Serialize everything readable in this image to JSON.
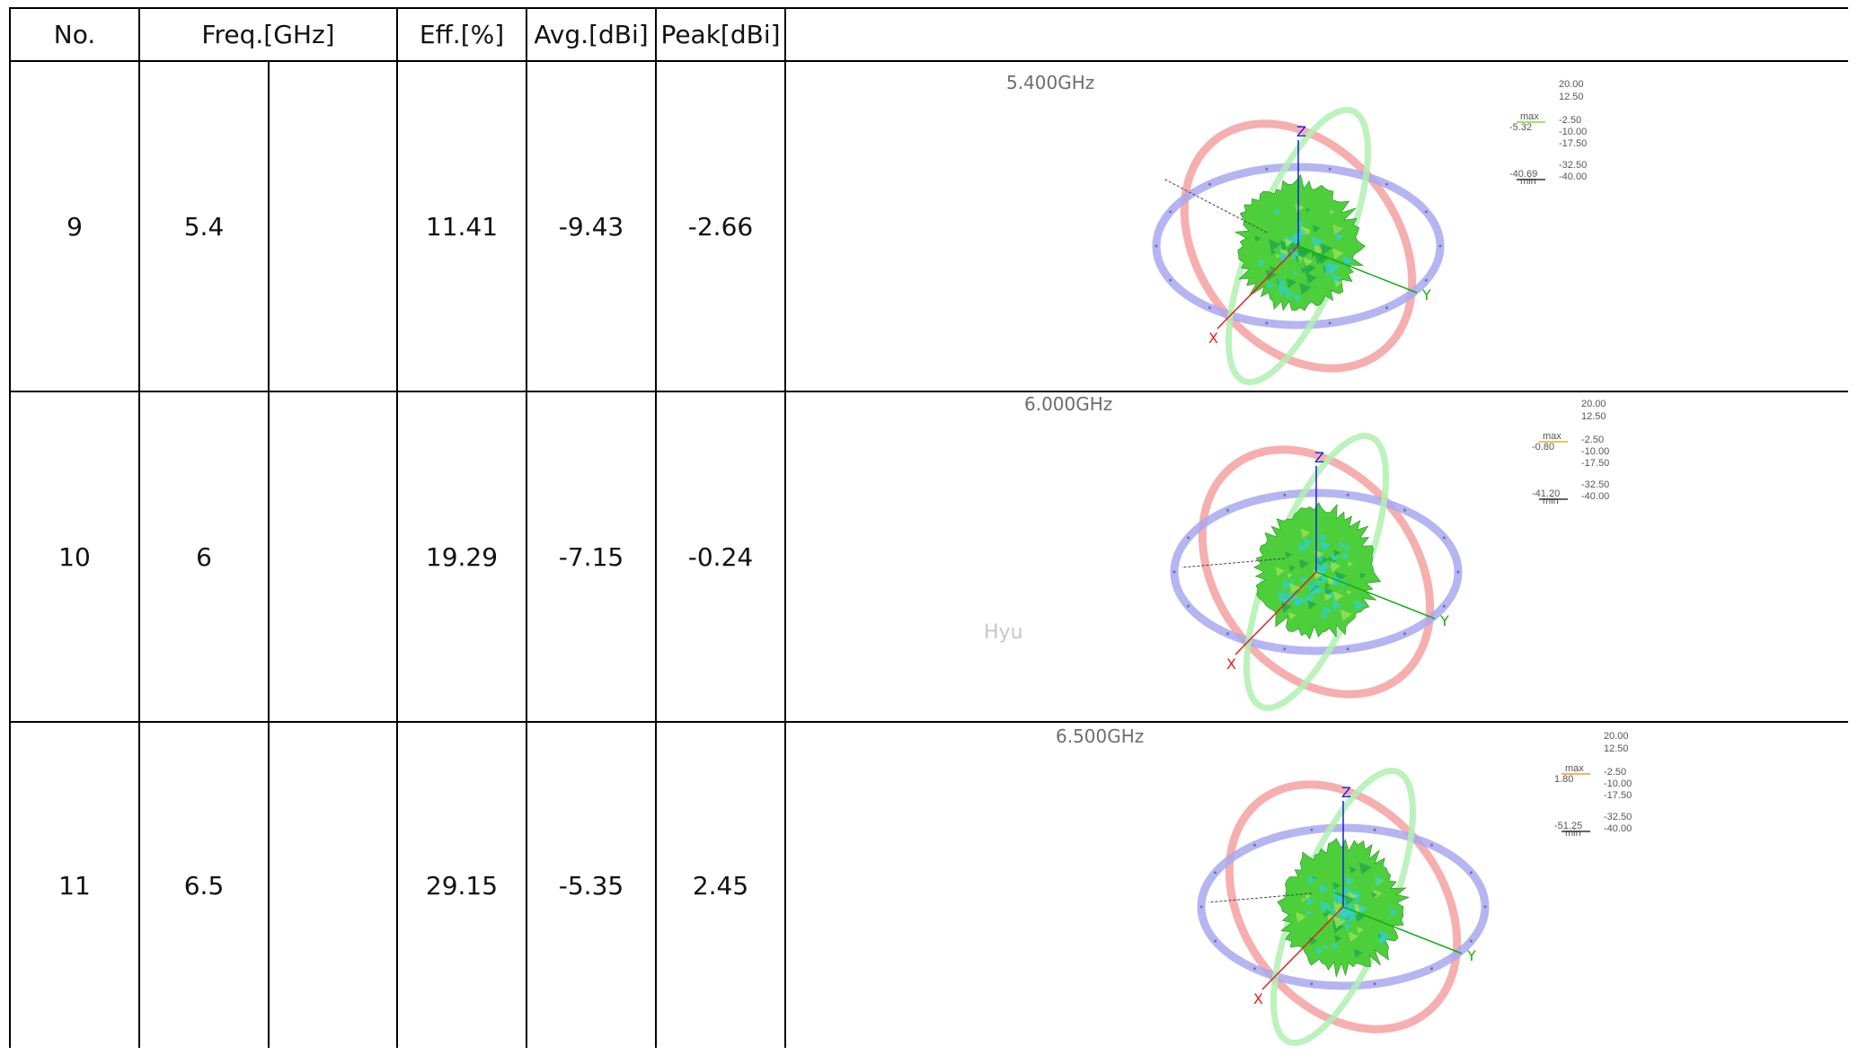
{
  "header": {
    "no": "No.",
    "freq": "Freq.[GHz]",
    "eff": "Eff.[%]",
    "avg": "Avg.[dBi]",
    "peak": "Peak[dBi]"
  },
  "rows": [
    {
      "no": "9",
      "freq": "5.4",
      "eff": "11.41",
      "avg": "-9.43",
      "peak": "-2.66",
      "pattern": {
        "title": "5.400GHz",
        "max_label": "max",
        "max_value": "-5.32",
        "min_label": "min",
        "min_value": "-40.69",
        "scale_top": [
          "20.00",
          "12.50"
        ],
        "scale_mid": [
          "-2.50",
          "-10.00",
          "-17.50"
        ],
        "scale_low": [
          "-32.50",
          "-40.00"
        ],
        "max_color": "#7ddc3a"
      }
    },
    {
      "no": "10",
      "freq": "6",
      "eff": "19.29",
      "avg": "-7.15",
      "peak": "-0.24",
      "pattern": {
        "title": "6.000GHz",
        "max_label": "max",
        "max_value": "-0.80",
        "min_label": "min",
        "min_value": "-41.20",
        "scale_top": [
          "20.00",
          "12.50"
        ],
        "scale_mid": [
          "-2.50",
          "-10.00",
          "-17.50"
        ],
        "scale_low": [
          "-32.50",
          "-40.00"
        ],
        "max_color": "#e8b020",
        "watermark": "Hyu"
      }
    },
    {
      "no": "11",
      "freq": "6.5",
      "eff": "29.15",
      "avg": "-5.35",
      "peak": "2.45",
      "pattern": {
        "title": "6.500GHz",
        "max_label": "max",
        "max_value": "1.80",
        "min_label": "min",
        "min_value": "-51.25",
        "scale_top": [
          "20.00",
          "12.50"
        ],
        "scale_mid": [
          "-2.50",
          "-10.00",
          "-17.50"
        ],
        "scale_low": [
          "-32.50",
          "-40.00"
        ],
        "max_color": "#e8a020"
      }
    }
  ],
  "axes": {
    "x": "X",
    "y": "Y",
    "z": "Z"
  },
  "colors": {
    "ring_red": "#f4a0a0",
    "ring_blue": "#a8a8f0",
    "ring_green": "#b0f0b0",
    "pattern_green": "#4ccf3a",
    "pattern_cyan": "#32d0c8",
    "axis_x": "#e02020",
    "axis_y": "#10b010",
    "axis_z": "#1020e0"
  }
}
